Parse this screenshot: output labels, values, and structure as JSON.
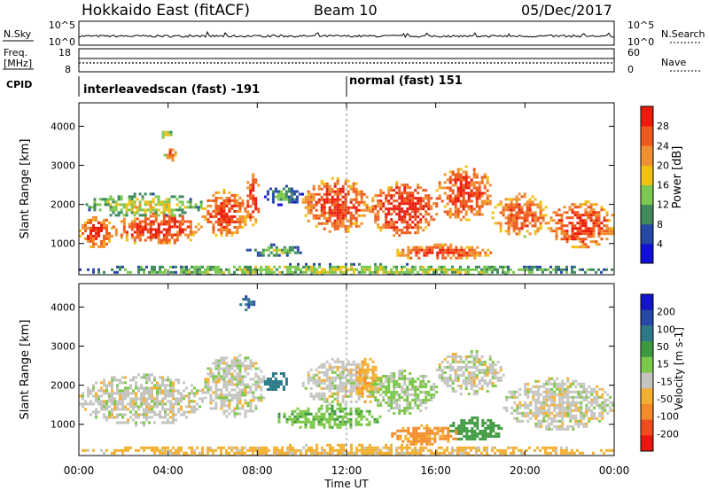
{
  "header": {
    "station": "Hokkaido East (fitACF)",
    "beam": "Beam 10",
    "date": "05/Dec/2017"
  },
  "noise_panel": {
    "left_label": "N.Sky",
    "left_ticks": [
      "10^5",
      "10^0"
    ],
    "right_label": "N.Search",
    "right_ticks": [
      "10^5",
      "10^0"
    ]
  },
  "freq_panel": {
    "left_label_1": "Freq.",
    "left_label_2": "[MHz]",
    "left_ticks": [
      "18",
      "8"
    ],
    "right_label": "Nave",
    "right_ticks": [
      "60",
      "0"
    ]
  },
  "cpid": {
    "label": "CPID",
    "modes": [
      {
        "text": "interleavedscan (fast) -191",
        "start_hour": 0
      },
      {
        "text": "normal (fast) 151",
        "start_hour": 12
      }
    ]
  },
  "colors": {
    "power": [
      "#1010d8",
      "#2848a8",
      "#3e8a5c",
      "#7cc850",
      "#f2c014",
      "#f09030",
      "#f05a1c",
      "#ec1c0c"
    ],
    "velocity": [
      "#e81810",
      "#f04c1c",
      "#f48a28",
      "#f4b030",
      "#c4c4c0",
      "#7cc848",
      "#3e9a40",
      "#2c7a88",
      "#2848a8",
      "#1414c8"
    ]
  },
  "chart_data": [
    {
      "type": "heatmap",
      "name": "power",
      "ylabel": "Slant Range [km]",
      "y_ticks": [
        "1000",
        "2000",
        "3000",
        "4000"
      ],
      "ylim": [
        200,
        4600
      ],
      "xlim": [
        0,
        24
      ],
      "cbar_label": "Power [dB]",
      "cbar_ticks": [
        "4",
        "8",
        "12",
        "16",
        "20",
        "24",
        "28"
      ],
      "cbar_range": [
        0,
        32
      ],
      "regions": [
        {
          "x": [
            0,
            1.5
          ],
          "y": [
            900,
            1700
          ],
          "level": 0.9
        },
        {
          "x": [
            1.5,
            5.5
          ],
          "y": [
            1000,
            1800
          ],
          "level": 0.92
        },
        {
          "x": [
            0.3,
            5.5
          ],
          "y": [
            1700,
            2300
          ],
          "level": 0.55
        },
        {
          "x": [
            5.5,
            7.5
          ],
          "y": [
            1200,
            2400
          ],
          "level": 0.9
        },
        {
          "x": [
            7.4,
            8.1
          ],
          "y": [
            1500,
            2800
          ],
          "level": 0.92
        },
        {
          "x": [
            8.3,
            10
          ],
          "y": [
            2000,
            2500
          ],
          "level": 0.35
        },
        {
          "x": [
            10,
            13
          ],
          "y": [
            1300,
            2700
          ],
          "level": 0.9
        },
        {
          "x": [
            13,
            16
          ],
          "y": [
            1200,
            2600
          ],
          "level": 0.95
        },
        {
          "x": [
            14,
            18.5
          ],
          "y": [
            600,
            1000
          ],
          "level": 0.88
        },
        {
          "x": [
            16,
            18.5
          ],
          "y": [
            1600,
            3000
          ],
          "level": 0.9
        },
        {
          "x": [
            18.5,
            21
          ],
          "y": [
            1200,
            2300
          ],
          "level": 0.85
        },
        {
          "x": [
            21,
            24
          ],
          "y": [
            900,
            2100
          ],
          "level": 0.9
        },
        {
          "x": [
            7.5,
            10
          ],
          "y": [
            700,
            1000
          ],
          "level": 0.45
        },
        {
          "x": [
            3.8,
            4.3
          ],
          "y": [
            3100,
            3500
          ],
          "level": 0.8
        },
        {
          "x": [
            3.6,
            4.1
          ],
          "y": [
            3700,
            3950
          ],
          "level": 0.6
        },
        {
          "x": [
            0,
            24
          ],
          "y": [
            200,
            500
          ],
          "level": 0.5
        }
      ]
    },
    {
      "type": "heatmap",
      "name": "velocity",
      "ylabel": "Slant Range [km]",
      "y_ticks": [
        "1000",
        "2000",
        "3000",
        "4000"
      ],
      "ylim": [
        200,
        4600
      ],
      "xlim": [
        0,
        24
      ],
      "xlabel": "Time UT",
      "x_ticks": [
        "00:00",
        "04:00",
        "08:00",
        "12:00",
        "16:00",
        "20:00",
        "00:00"
      ],
      "cbar_label": "Velocity [m s-1]",
      "cbar_ticks": [
        "200",
        "100",
        "50",
        "15",
        "-15",
        "-50",
        "-100",
        "-200"
      ],
      "cbar_range": [
        -250,
        250
      ],
      "regions": [
        {
          "x": [
            0,
            5.5
          ],
          "y": [
            1000,
            2300
          ],
          "v": 0
        },
        {
          "x": [
            5.5,
            8.3
          ],
          "y": [
            1200,
            2800
          ],
          "v": 0
        },
        {
          "x": [
            8.3,
            9.3
          ],
          "y": [
            1800,
            2400
          ],
          "v": 160
        },
        {
          "x": [
            8.8,
            13.5
          ],
          "y": [
            900,
            1500
          ],
          "v": 40
        },
        {
          "x": [
            10,
            13
          ],
          "y": [
            1500,
            2700
          ],
          "v": 0
        },
        {
          "x": [
            12.3,
            13.5
          ],
          "y": [
            1600,
            2700
          ],
          "v": -40
        },
        {
          "x": [
            13,
            16
          ],
          "y": [
            1300,
            2400
          ],
          "v": 20
        },
        {
          "x": [
            14,
            17
          ],
          "y": [
            500,
            1000
          ],
          "v": -60
        },
        {
          "x": [
            16.5,
            19
          ],
          "y": [
            600,
            1200
          ],
          "v": 80
        },
        {
          "x": [
            16,
            19
          ],
          "y": [
            1800,
            2900
          ],
          "v": 0
        },
        {
          "x": [
            19,
            24
          ],
          "y": [
            900,
            2200
          ],
          "v": 0
        },
        {
          "x": [
            7.2,
            7.8
          ],
          "y": [
            3950,
            4300
          ],
          "v": 200
        },
        {
          "x": [
            0,
            24
          ],
          "y": [
            200,
            500
          ],
          "v": -30
        }
      ]
    }
  ]
}
